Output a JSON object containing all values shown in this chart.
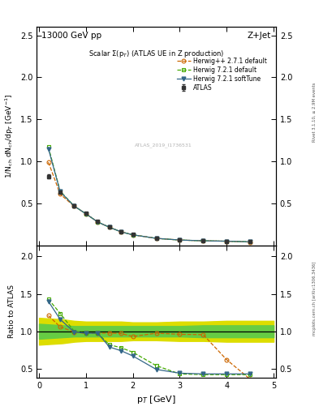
{
  "title_top": "13000 GeV pp",
  "title_right": "Z+Jet",
  "main_title": "Scalar $\\Sigma$(p$_T$) (ATLAS UE in Z production)",
  "rivet_label": "Rivet 3.1.10, ≥ 2.9M events",
  "mcplots_label": "mcplots.cern.ch [arXiv:1306.3436]",
  "watermark": "ATLAS_2019_I1736531",
  "ylabel_main": "1/N$_{ch}$ dN$_{ch}$/dp$_T$ [GeV$^{-1}$]",
  "ylabel_ratio": "Ratio to ATLAS",
  "xlabel": "p$_T$ [GeV]",
  "ylim_main": [
    0.0,
    2.6
  ],
  "ylim_ratio": [
    0.38,
    2.15
  ],
  "yticks_main": [
    0.5,
    1.0,
    1.5,
    2.0,
    2.5
  ],
  "yticks_ratio": [
    0.5,
    1.0,
    1.5,
    2.0
  ],
  "xlim": [
    -0.05,
    5.05
  ],
  "atlas_x": [
    0.2,
    0.45,
    0.75,
    1.0,
    1.25,
    1.5,
    1.75,
    2.0,
    2.5,
    3.0,
    3.5,
    4.0,
    4.5
  ],
  "atlas_y": [
    0.82,
    0.63,
    0.47,
    0.385,
    0.285,
    0.22,
    0.165,
    0.135,
    0.085,
    0.062,
    0.053,
    0.048,
    0.042
  ],
  "atlas_yerr": [
    0.025,
    0.018,
    0.015,
    0.012,
    0.009,
    0.008,
    0.007,
    0.006,
    0.004,
    0.003,
    0.003,
    0.003,
    0.003
  ],
  "atlas_color": "#333333",
  "atlas_label": "ATLAS",
  "hwpp_x": [
    0.2,
    0.45,
    0.75,
    1.0,
    1.25,
    1.5,
    1.75,
    2.0,
    2.5,
    3.0,
    3.5,
    4.0,
    4.5
  ],
  "hwpp_y": [
    0.99,
    0.61,
    0.465,
    0.375,
    0.278,
    0.215,
    0.16,
    0.125,
    0.083,
    0.063,
    0.054,
    0.049,
    0.039
  ],
  "hwpp_color": "#cc6600",
  "hwpp_label": "Herwig++ 2.7.1 default",
  "hw721d_x": [
    0.2,
    0.45,
    0.75,
    1.0,
    1.25,
    1.5,
    1.75,
    2.0,
    2.5,
    3.0,
    3.5,
    4.0,
    4.5
  ],
  "hw721d_y": [
    1.17,
    0.645,
    0.468,
    0.375,
    0.278,
    0.215,
    0.16,
    0.125,
    0.083,
    0.063,
    0.054,
    0.049,
    0.042
  ],
  "hw721d_color": "#44aa00",
  "hw721d_label": "Herwig 7.2.1 default",
  "hw721s_x": [
    0.2,
    0.45,
    0.75,
    1.0,
    1.25,
    1.5,
    1.75,
    2.0,
    2.5,
    3.0,
    3.5,
    4.0,
    4.5
  ],
  "hw721s_y": [
    1.15,
    0.64,
    0.467,
    0.375,
    0.278,
    0.215,
    0.16,
    0.125,
    0.083,
    0.063,
    0.054,
    0.049,
    0.042
  ],
  "hw721s_color": "#336688",
  "hw721s_label": "Herwig 7.2.1 softTune",
  "ratio_hwpp_x": [
    0.2,
    0.45,
    0.75,
    1.0,
    1.25,
    1.5,
    1.75,
    2.0,
    2.5,
    3.0,
    3.5,
    4.0,
    4.5
  ],
  "ratio_hwpp_y": [
    1.21,
    1.06,
    0.99,
    0.97,
    0.975,
    0.977,
    0.97,
    0.93,
    0.975,
    0.96,
    0.955,
    0.62,
    0.36
  ],
  "ratio_hw721d_x": [
    0.2,
    0.45,
    0.75,
    1.0,
    1.25,
    1.5,
    1.75,
    2.0,
    2.5,
    3.0,
    3.5,
    4.0,
    4.5
  ],
  "ratio_hw721d_y": [
    1.43,
    1.24,
    1.0,
    0.975,
    0.975,
    0.82,
    0.78,
    0.72,
    0.54,
    0.43,
    0.42,
    0.42,
    0.42
  ],
  "ratio_hw721s_x": [
    0.2,
    0.45,
    0.75,
    1.0,
    1.25,
    1.5,
    1.75,
    2.0,
    2.5,
    3.0,
    3.5,
    4.0,
    4.5
  ],
  "ratio_hw721s_y": [
    1.4,
    1.16,
    0.99,
    0.975,
    0.975,
    0.79,
    0.74,
    0.67,
    0.49,
    0.44,
    0.43,
    0.43,
    0.43
  ],
  "band_x": [
    0.0,
    0.25,
    0.5,
    0.75,
    1.0,
    1.25,
    1.5,
    1.75,
    2.0,
    2.5,
    3.0,
    3.5,
    4.0,
    4.5,
    5.0
  ],
  "band_green_lo": [
    0.9,
    0.91,
    0.92,
    0.93,
    0.93,
    0.93,
    0.93,
    0.93,
    0.93,
    0.93,
    0.93,
    0.92,
    0.92,
    0.92,
    0.92
  ],
  "band_green_hi": [
    1.1,
    1.09,
    1.08,
    1.07,
    1.07,
    1.07,
    1.07,
    1.07,
    1.07,
    1.07,
    1.07,
    1.08,
    1.08,
    1.08,
    1.08
  ],
  "band_yellow_lo": [
    0.82,
    0.83,
    0.84,
    0.86,
    0.87,
    0.87,
    0.87,
    0.87,
    0.88,
    0.88,
    0.87,
    0.87,
    0.86,
    0.86,
    0.86
  ],
  "band_yellow_hi": [
    1.18,
    1.17,
    1.16,
    1.14,
    1.13,
    1.13,
    1.13,
    1.13,
    1.12,
    1.12,
    1.13,
    1.13,
    1.14,
    1.14,
    1.14
  ],
  "green_color": "#66cc44",
  "yellow_color": "#dddd00"
}
